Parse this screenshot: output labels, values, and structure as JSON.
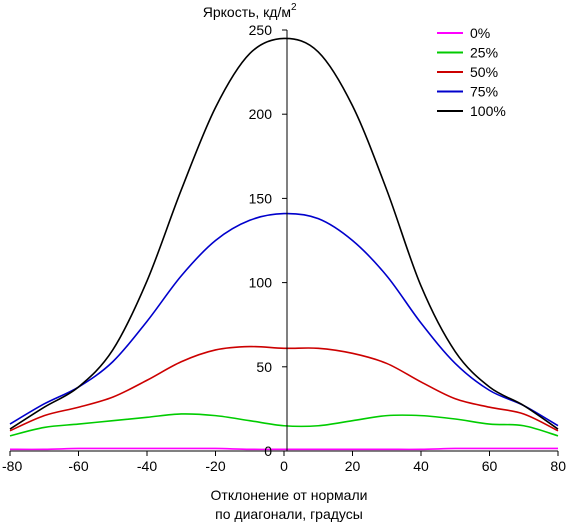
{
  "chart_data": {
    "type": "line",
    "title": "Яркость, кд/м",
    "title_superscript": "2",
    "xlabel": [
      "Отклонение от нормали",
      "по диагонали, градусы"
    ],
    "ylabel": "",
    "xlim": [
      -80,
      80
    ],
    "ylim": [
      0,
      250
    ],
    "x_ticks": [
      -80,
      -60,
      -40,
      -20,
      0,
      20,
      40,
      60,
      80
    ],
    "y_ticks": [
      0,
      50,
      100,
      150,
      200,
      250
    ],
    "grid": false,
    "legend_position": "top-right",
    "x": [
      -80,
      -70,
      -60,
      -50,
      -40,
      -30,
      -20,
      -10,
      0,
      10,
      20,
      30,
      40,
      50,
      60,
      70,
      80
    ],
    "series": [
      {
        "name": "0%",
        "color": "#ff00ff",
        "values": [
          1,
          1,
          1.5,
          1.5,
          1.5,
          1.5,
          1.5,
          1,
          1,
          1,
          1,
          1,
          1,
          1.5,
          1.5,
          1.5,
          1.5
        ]
      },
      {
        "name": "25%",
        "color": "#00cc00",
        "values": [
          9,
          14,
          16,
          18,
          20,
          22,
          21,
          18,
          15,
          15,
          18,
          21,
          21,
          19,
          16,
          15,
          9
        ]
      },
      {
        "name": "50%",
        "color": "#cc0000",
        "values": [
          12,
          21,
          26,
          32,
          42,
          53,
          60,
          62,
          61,
          61,
          58,
          52,
          41,
          31,
          26,
          22,
          12
        ]
      },
      {
        "name": "75%",
        "color": "#0000cc",
        "values": [
          16,
          28,
          38,
          53,
          77,
          104,
          125,
          137,
          141,
          138,
          125,
          104,
          76,
          52,
          36,
          27,
          15
        ]
      },
      {
        "name": "100%",
        "color": "#000000",
        "values": [
          13,
          26,
          38,
          60,
          101,
          155,
          204,
          236,
          245,
          237,
          205,
          155,
          98,
          59,
          38,
          27,
          13
        ]
      }
    ]
  }
}
